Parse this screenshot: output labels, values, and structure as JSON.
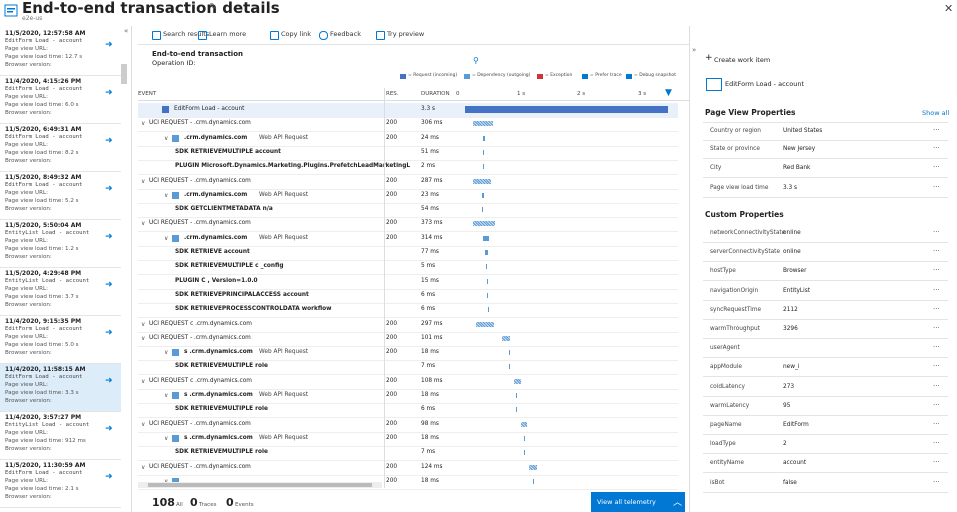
{
  "header": {
    "title": "End-to-end transaction details",
    "subtitle": "e2e-us"
  },
  "sidebar": {
    "items": [
      {
        "time": "11/5/2020, 12:57:58 AM",
        "event": "EditForm Load - account",
        "url": "Page view URL:",
        "load": "Page view load time: 12.7 s",
        "version": "Browser version:"
      },
      {
        "time": "11/4/2020, 4:15:26 PM",
        "event": "EditForm Load - account",
        "url": "Page view URL:",
        "load": "Page view load time: 6.0 s",
        "version": "Browser version:"
      },
      {
        "time": "11/5/2020, 6:49:31 AM",
        "event": "EditForm Load - account",
        "url": "Page view URL:",
        "load": "Page view load time: 8.2 s",
        "version": "Browser version:"
      },
      {
        "time": "11/5/2020, 8:49:32 AM",
        "event": "EditForm Load - account",
        "url": "Page view URL:",
        "load": "Page view load time: 5.2 s",
        "version": "Browser version:"
      },
      {
        "time": "11/5/2020, 5:50:04 AM",
        "event": "EntityList Load - account",
        "url": "Page view URL:",
        "load": "Page view load time: 1.2 s",
        "version": "Browser version:"
      },
      {
        "time": "11/5/2020, 4:29:48 PM",
        "event": "EntityList Load - account",
        "url": "Page view URL:",
        "load": "Page view load time: 3.7 s",
        "version": "Browser version:"
      },
      {
        "time": "11/4/2020, 9:15:35 PM",
        "event": "EditForm Load - account",
        "url": "Page view URL:",
        "load": "Page view load time: 5.0 s",
        "version": "Browser version:"
      },
      {
        "time": "11/4/2020, 11:58:15 AM",
        "event": "EditForm Load - account",
        "url": "Page view URL:",
        "load": "Page view load time: 3.3 s",
        "version": "Browser version:"
      },
      {
        "time": "11/4/2020, 3:57:27 PM",
        "event": "EntityList Load - account",
        "url": "Page view URL:",
        "load": "Page view load time: 912 ms",
        "version": "Browser version:"
      },
      {
        "time": "11/5/2020, 11:30:59 AM",
        "event": "EditForm Load - account",
        "url": "Page view URL:",
        "load": "Page view load time: 2.1 s",
        "version": "Browser version:"
      }
    ]
  },
  "toolbar": [
    "Search results",
    "Learn more",
    "Copy link",
    "Feedback",
    "Try preview"
  ],
  "transaction": {
    "title": "End-to-end transaction",
    "operation": "Operation ID:",
    "legend": [
      "= Request (incoming)",
      "= Dependency (outgoing)",
      "= Exception",
      "= Prefer trace",
      "= Debug snapshot"
    ],
    "columns": [
      "EVENT",
      "RES.",
      "DURATION"
    ],
    "timeline_ticks": [
      "0",
      "1 s",
      "2 s",
      "3 s"
    ],
    "rows": [
      {
        "event": "EditForm Load - account",
        "duration": "3.3 s"
      },
      {
        "event": "UCI REQUEST - .crm.dynamics.com",
        "res": "200",
        "duration": "306 ms"
      },
      {
        "event": ".crm.dynamics.com",
        "detail": "Web API Request",
        "res": "200",
        "duration": "24 ms"
      },
      {
        "event": "SDK RETRIEVEMULTIPLE account",
        "duration": "51 ms"
      },
      {
        "event": "PLUGIN Microsoft.Dynamics.Marketing.Plugins.PrefetchLeadMarketingL",
        "duration": "2 ms"
      },
      {
        "event": "UCI REQUEST - .crm.dynamics.com",
        "res": "200",
        "duration": "287 ms"
      },
      {
        "event": ".crm.dynamics.com",
        "detail": "Web API Request",
        "res": "200",
        "duration": "23 ms"
      },
      {
        "event": "SDK GETCLIENTMETADATA n/a",
        "duration": "54 ms"
      },
      {
        "event": "UCI REQUEST - .crm.dynamics.com",
        "res": "200",
        "duration": "373 ms"
      },
      {
        "event": ".crm.dynamics.com",
        "detail": "Web API Request",
        "res": "200",
        "duration": "314 ms"
      },
      {
        "event": "SDK RETRIEVE account",
        "duration": "77 ms"
      },
      {
        "event": "SDK RETRIEVEMULTIPLE c      _config",
        "duration": "5 ms"
      },
      {
        "event": "PLUGIN C                                   , Version=1.0.0",
        "duration": "15 ms"
      },
      {
        "event": "SDK RETRIEVEPRINCIPALACCESS account",
        "duration": "6 ms"
      },
      {
        "event": "SDK RETRIEVEPROCESSCONTROLDATA workflow",
        "duration": "6 ms"
      },
      {
        "event": "UCI REQUEST c .crm.dynamics.com",
        "res": "200",
        "duration": "297 ms"
      },
      {
        "event": "UCI REQUEST - .crm.dynamics.com",
        "res": "200",
        "duration": "101 ms"
      },
      {
        "event": "s .crm.dynamics.com",
        "detail": "Web API Request",
        "res": "200",
        "duration": "18 ms"
      },
      {
        "event": "SDK RETRIEVEMULTIPLE role",
        "duration": "7 ms"
      },
      {
        "event": "UCI REQUEST c .crm.dynamics.com",
        "res": "200",
        "duration": "108 ms"
      },
      {
        "event": "s .crm.dynamics.com",
        "detail": "Web API Request",
        "res": "200",
        "duration": "18 ms"
      },
      {
        "event": "SDK RETRIEVEMULTIPLE role",
        "duration": "6 ms"
      },
      {
        "event": "UCI REQUEST - .crm.dynamics.com",
        "res": "200",
        "duration": "98 ms"
      },
      {
        "event": "s .crm.dynamics.com",
        "detail": "Web API Request",
        "res": "200",
        "duration": "18 ms"
      },
      {
        "event": "SDK RETRIEVEMULTIPLE role",
        "duration": "7 ms"
      },
      {
        "event": "UCI REQUEST - .crm.dynamics.com",
        "res": "200",
        "duration": "124 ms"
      },
      {
        "event": "",
        "res": "200",
        "duration": "18 ms"
      }
    ]
  },
  "footer": {
    "all_count": "108",
    "all": "All",
    "traces_count": "0",
    "traces": "Traces",
    "events_count": "0",
    "events": "Events",
    "button": "View all telemetry"
  },
  "details": {
    "create": "Create work item",
    "item": "EditForm Load - account",
    "page_view_title": "Page View Properties",
    "show_all": "Show all",
    "page_view": [
      [
        "Country or region",
        "United States"
      ],
      [
        "State or province",
        "New Jersey"
      ],
      [
        "City",
        "Red Bank"
      ],
      [
        "Page view load time",
        "3.3 s"
      ]
    ],
    "custom_title": "Custom Properties",
    "custom": [
      [
        "networkConnectivityState",
        "online"
      ],
      [
        "serverConnectivityState",
        "online"
      ],
      [
        "hostType",
        "Browser"
      ],
      [
        "navigationOrigin",
        "EntityList"
      ],
      [
        "syncRequestTime",
        "2112"
      ],
      [
        "warmThroughput",
        "3296"
      ],
      [
        "userAgent"
      ],
      [
        "appModule",
        "new_i"
      ],
      [
        "coldLatency",
        "273"
      ],
      [
        "warmLatency",
        "95"
      ],
      [
        "pageName",
        "EditForm"
      ],
      [
        "loadType",
        "2"
      ],
      [
        "entityName",
        "account"
      ],
      [
        "isBot",
        "false"
      ]
    ]
  }
}
